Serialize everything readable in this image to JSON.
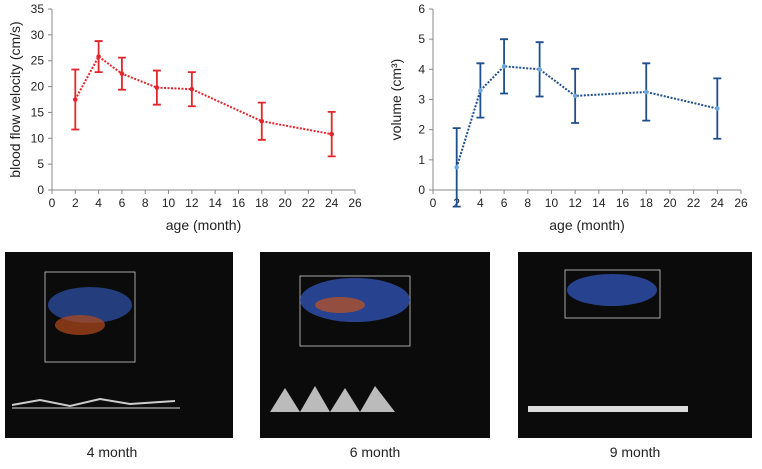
{
  "chart_data": [
    {
      "type": "line",
      "xlabel": "age (month)",
      "ylabel": "blood flow velocity (cm/s)",
      "x": [
        2,
        4,
        6,
        9,
        12,
        18,
        24
      ],
      "series": [
        {
          "color": "#e3262b",
          "values": [
            17.5,
            25.8,
            22.5,
            19.8,
            19.5,
            13.3,
            10.8
          ],
          "errors": [
            5.8,
            3.0,
            3.1,
            3.3,
            3.3,
            3.6,
            4.3
          ]
        }
      ],
      "xlim": [
        0,
        26
      ],
      "xticks": [
        0,
        2,
        4,
        6,
        8,
        10,
        12,
        14,
        16,
        18,
        20,
        22,
        24,
        26
      ],
      "ylim": [
        0,
        35
      ],
      "yticks": [
        0,
        5,
        10,
        15,
        20,
        25,
        30,
        35
      ],
      "grid": false
    },
    {
      "type": "line",
      "xlabel": "age (month)",
      "ylabel": "volume (cm³)",
      "x": [
        2,
        4,
        6,
        9,
        12,
        18,
        24
      ],
      "series": [
        {
          "color": "#1f4e8c",
          "values": [
            0.75,
            3.3,
            4.1,
            4.0,
            3.12,
            3.25,
            2.7
          ],
          "errors": [
            1.3,
            0.9,
            0.9,
            0.9,
            0.9,
            0.95,
            1.0
          ]
        }
      ],
      "xlim": [
        0,
        26
      ],
      "xticks": [
        0,
        2,
        4,
        6,
        8,
        10,
        12,
        14,
        16,
        18,
        20,
        22,
        24,
        26
      ],
      "ylim": [
        0,
        6
      ],
      "yticks": [
        0,
        1,
        2,
        3,
        4,
        5,
        6
      ],
      "grid": false
    }
  ],
  "images": [
    {
      "caption": "4 month"
    },
    {
      "caption": "6 month"
    },
    {
      "caption": "9 month"
    }
  ]
}
